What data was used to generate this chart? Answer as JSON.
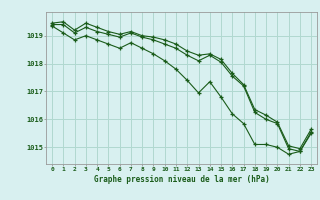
{
  "title": "Graphe pression niveau de la mer (hPa)",
  "background_color": "#d8f0f0",
  "grid_color": "#b0d8d0",
  "line_color": "#1a5c1a",
  "xlim": [
    -0.5,
    23.5
  ],
  "ylim": [
    1014.4,
    1019.85
  ],
  "yticks": [
    1015,
    1016,
    1017,
    1018,
    1019
  ],
  "xtick_labels": [
    "0",
    "1",
    "2",
    "3",
    "4",
    "5",
    "6",
    "7",
    "8",
    "9",
    "10",
    "11",
    "12",
    "13",
    "14",
    "15",
    "16",
    "17",
    "18",
    "19",
    "20",
    "21",
    "22",
    "23"
  ],
  "series1": [
    1019.45,
    1019.5,
    1019.2,
    1019.45,
    1019.3,
    1019.15,
    1019.05,
    1019.15,
    1019.0,
    1018.95,
    1018.85,
    1018.7,
    1018.45,
    1018.3,
    1018.35,
    1018.15,
    1017.65,
    1017.25,
    1016.35,
    1016.15,
    1015.9,
    1015.05,
    1014.95,
    1015.65
  ],
  "series2": [
    1019.4,
    1019.4,
    1019.1,
    1019.3,
    1019.15,
    1019.05,
    1018.95,
    1019.1,
    1018.95,
    1018.85,
    1018.7,
    1018.55,
    1018.3,
    1018.1,
    1018.3,
    1018.05,
    1017.55,
    1017.2,
    1016.25,
    1016.0,
    1015.85,
    1014.95,
    1014.85,
    1015.55
  ],
  "series3": [
    1019.35,
    1019.1,
    1018.85,
    1019.0,
    1018.85,
    1018.7,
    1018.55,
    1018.75,
    1018.55,
    1018.35,
    1018.1,
    1017.8,
    1017.4,
    1016.95,
    1017.35,
    1016.8,
    1016.2,
    1015.85,
    1015.1,
    1015.1,
    1015.0,
    1014.75,
    1014.85,
    1015.5
  ]
}
